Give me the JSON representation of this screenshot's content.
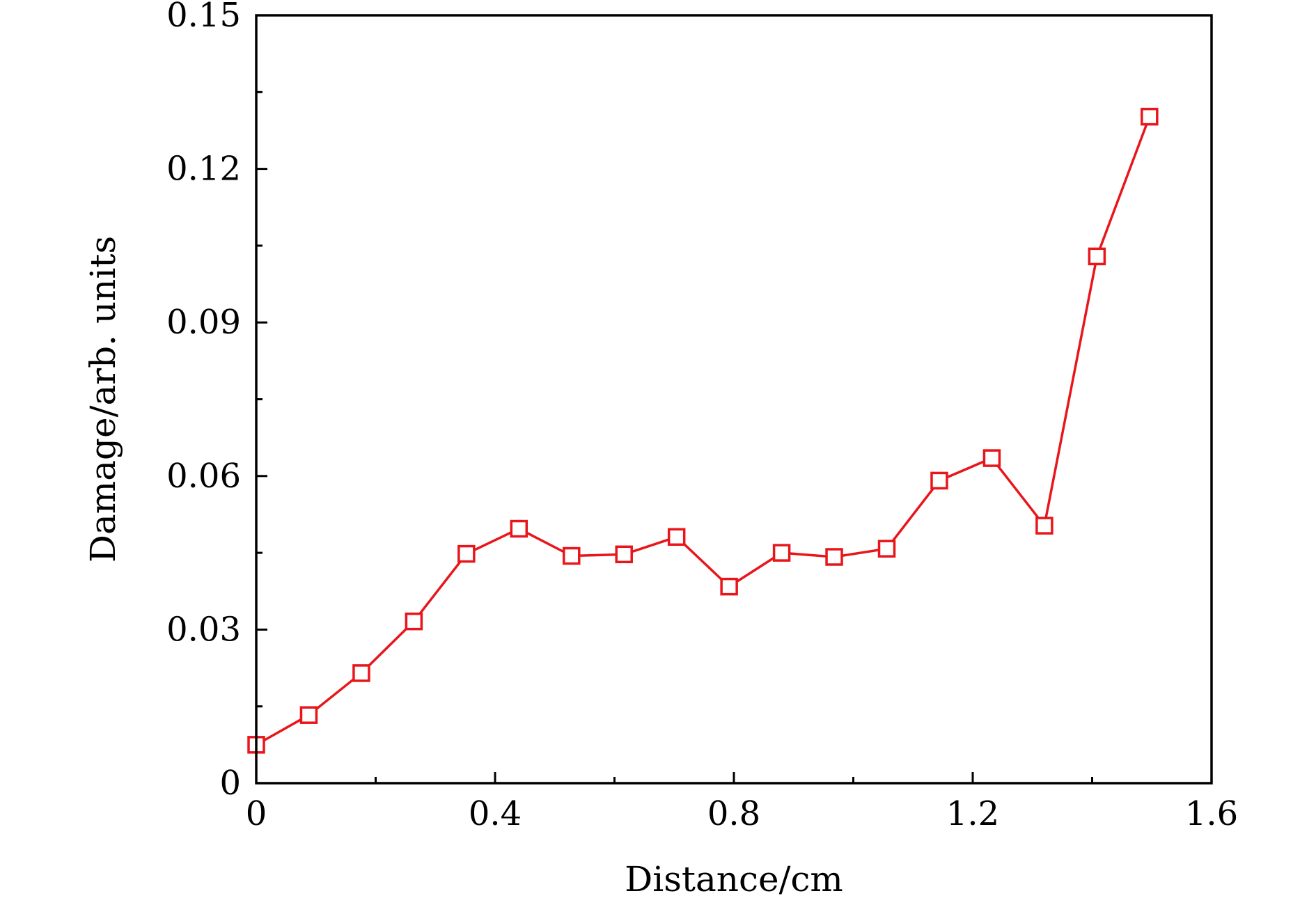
{
  "chart_data": {
    "type": "line",
    "xlabel": "Distance/cm",
    "ylabel": "Damage/arb. units",
    "xlim": [
      0,
      1.6
    ],
    "ylim": [
      0,
      0.15
    ],
    "x_ticks": [
      {
        "value": 0,
        "label": "0"
      },
      {
        "value": 0.4,
        "label": "0.4"
      },
      {
        "value": 0.8,
        "label": "0.8"
      },
      {
        "value": 1.2,
        "label": "1.2"
      },
      {
        "value": 1.6,
        "label": "1.6"
      }
    ],
    "x_minor_ticks": [
      0.2,
      0.6,
      1.0,
      1.4
    ],
    "y_ticks": [
      {
        "value": 0,
        "label": "0"
      },
      {
        "value": 0.03,
        "label": "0.03"
      },
      {
        "value": 0.06,
        "label": "0.06"
      },
      {
        "value": 0.09,
        "label": "0.09"
      },
      {
        "value": 0.12,
        "label": "0.12"
      },
      {
        "value": 0.15,
        "label": "0.15"
      }
    ],
    "y_minor_ticks": [
      0.015,
      0.045,
      0.075,
      0.105,
      0.135
    ],
    "grid": false,
    "color": "#e8161b",
    "marker": "open-square",
    "series": [
      {
        "x": [
          0,
          0.088,
          0.176,
          0.264,
          0.352,
          0.44,
          0.528,
          0.616,
          0.704,
          0.792,
          0.88,
          0.968,
          1.056,
          1.144,
          1.232,
          1.32,
          1.408,
          1.496
        ],
        "values": [
          0.0075,
          0.0133,
          0.0215,
          0.0316,
          0.0448,
          0.0497,
          0.0444,
          0.0447,
          0.0481,
          0.0384,
          0.045,
          0.0442,
          0.0458,
          0.0591,
          0.0635,
          0.0503,
          0.1029,
          0.1302
        ]
      }
    ]
  }
}
